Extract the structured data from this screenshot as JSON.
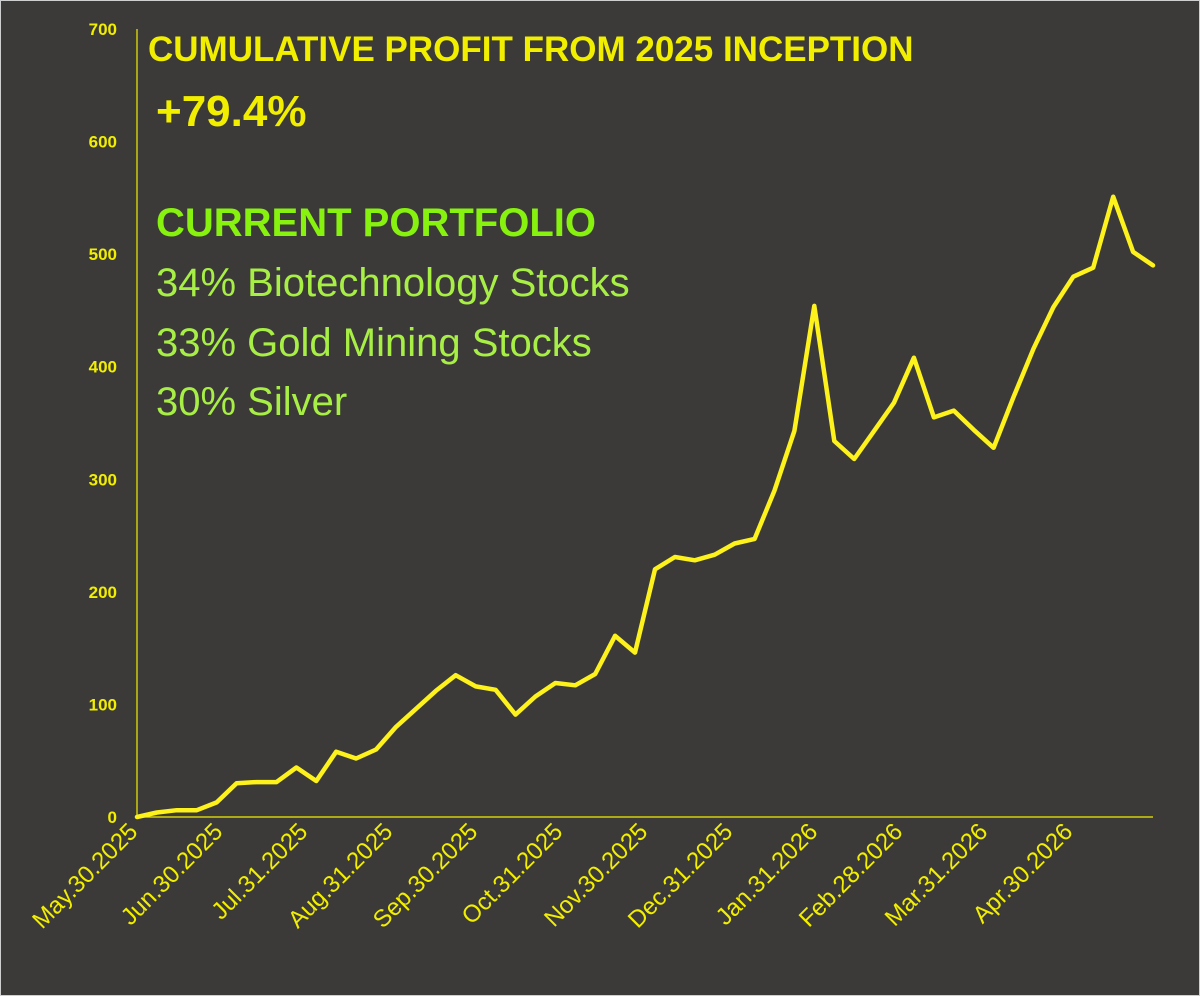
{
  "chart_data": {
    "type": "line",
    "title": "CUMULATIVE PROFIT FROM 2025 INCEPTION",
    "xlabel": "",
    "ylabel": "",
    "ylim": [
      0,
      700
    ],
    "yticks": [
      0,
      100,
      200,
      300,
      400,
      500,
      600,
      700
    ],
    "xtick_labels": [
      "May.30.2025",
      "Jun.30.2025",
      "Jul.31.2025",
      "Aug.31.2025",
      "Sep.30.2025",
      "Oct.31.2025",
      "Nov.30.2025",
      "Dec.31.2025",
      "Jan.31.2026",
      "Feb.28.2026",
      "Mar.31.2026",
      "Apr.30.2026"
    ],
    "grid": false,
    "line_color": "#fdf21b",
    "series": [
      {
        "values": [
          0,
          4,
          6,
          6,
          13,
          30,
          31,
          31,
          44,
          32,
          58,
          52,
          60,
          80,
          96,
          112,
          126,
          116,
          113,
          91,
          107,
          119,
          117,
          127,
          161,
          146,
          220,
          231,
          228,
          233,
          243,
          247,
          290,
          343,
          454,
          334,
          318,
          343,
          368,
          408,
          355,
          361,
          344,
          328,
          373,
          416,
          453,
          480,
          488,
          551,
          502,
          490
        ]
      }
    ]
  },
  "annotations": {
    "headline_value": "+79.4%",
    "portfolio_title": "CURRENT PORTFOLIO",
    "portfolio_items": [
      "34% Biotechnology Stocks",
      "33% Gold Mining Stocks",
      "30% Silver"
    ]
  },
  "colors": {
    "background": "#3b3a39",
    "axis_and_text": "#f2ee00",
    "portfolio_title": "#86f20e",
    "portfolio_items": "#a7ee45"
  }
}
